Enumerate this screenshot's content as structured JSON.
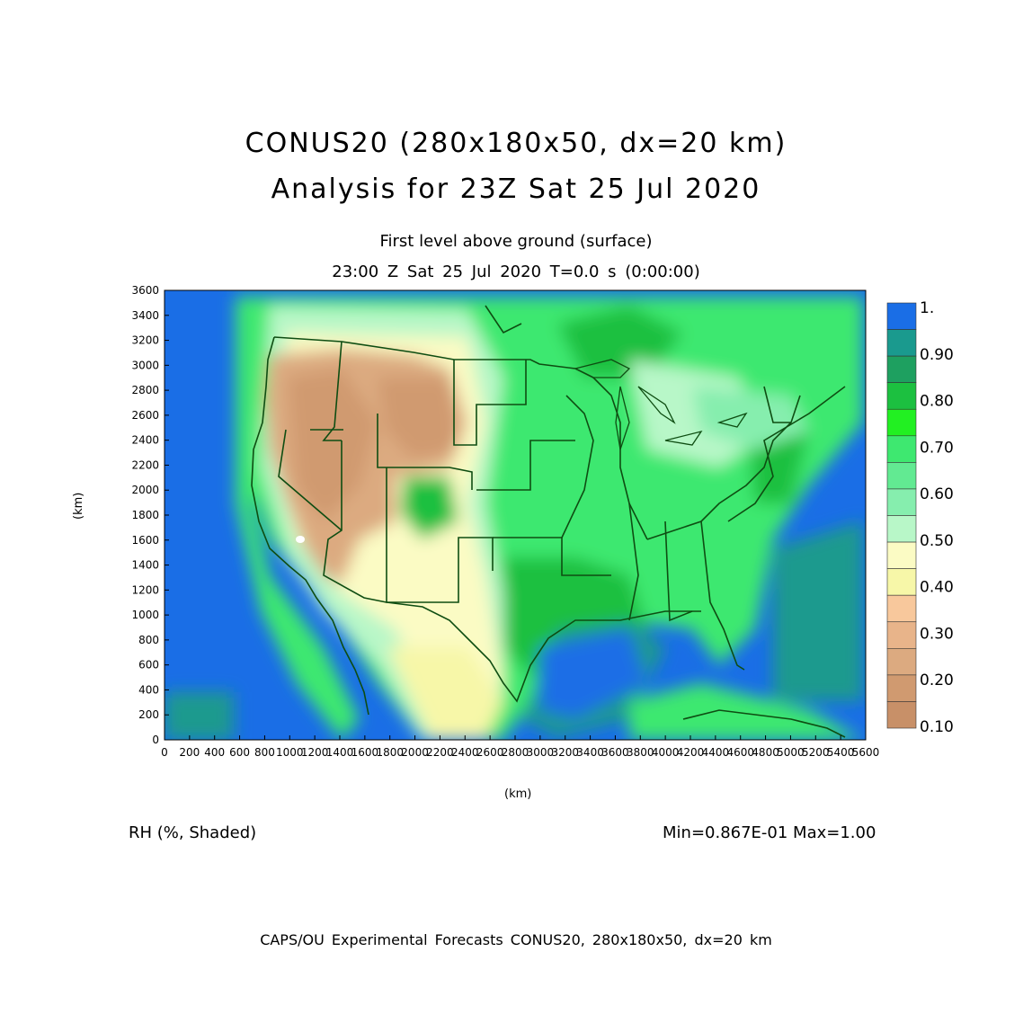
{
  "title": {
    "line1": "CONUS20 (280x180x50, dx=20 km)",
    "line2": "Analysis for 23Z Sat 25 Jul 2020"
  },
  "subtitle": {
    "level": "First level above ground (surface)",
    "time": "23:00 Z Sat 25 Jul 2020   T=0.0 s (0:00:00)"
  },
  "axes": {
    "x_label": "(km)",
    "y_label": "(km)",
    "x_ticks": [
      "0",
      "200",
      "400",
      "600",
      "800",
      "1000",
      "1200",
      "1400",
      "1600",
      "1800",
      "2000",
      "2200",
      "2400",
      "2600",
      "2800",
      "3000",
      "3200",
      "3400",
      "3600",
      "3800",
      "4000",
      "4200",
      "4400",
      "4600",
      "4800",
      "5000",
      "5200",
      "5400",
      "5600"
    ],
    "y_ticks": [
      "0",
      "200",
      "400",
      "600",
      "800",
      "1000",
      "1200",
      "1400",
      "1600",
      "1800",
      "2000",
      "2200",
      "2400",
      "2600",
      "2800",
      "3000",
      "3200",
      "3400",
      "3600"
    ],
    "x_range": [
      0,
      5600
    ],
    "y_range": [
      0,
      3600
    ]
  },
  "colorbar": {
    "labels": [
      "1.",
      "0.90",
      "0.80",
      "0.70",
      "0.60",
      "0.50",
      "0.40",
      "0.30",
      "0.20",
      "0.10"
    ],
    "colors": [
      "#1a6ee6",
      "#1a9a8e",
      "#1ea060",
      "#1cc040",
      "#22f022",
      "#3ee870",
      "#62ea92",
      "#86eeae",
      "#b8f7c8",
      "#fbfbc4",
      "#f7f7a8",
      "#f8c89c",
      "#e8b48a",
      "#dcaa80",
      "#d09a70",
      "#c89068"
    ]
  },
  "variable": "RH (%, Shaded)",
  "minmax": "Min=0.867E-01 Max=1.00",
  "footer": "CAPS/OU Experimental Forecasts  CONUS20, 280x180x50, dx=20 km"
}
